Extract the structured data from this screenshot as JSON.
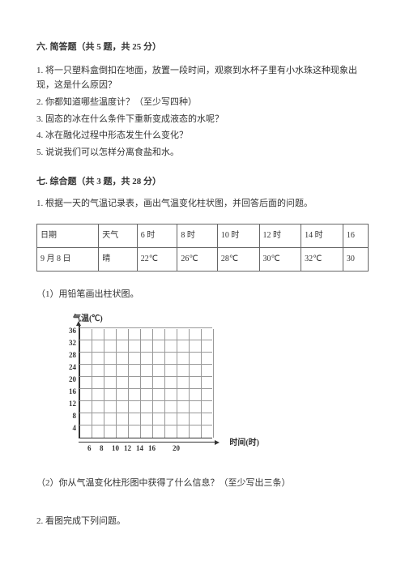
{
  "section6": {
    "title": "六. 简答题（共 5 题，共 25 分）",
    "questions": [
      "1. 将一只塑料盒倒扣在地面，放置一段时间，观察到水杯子里有小水珠这种现象出现，这是什么原因？",
      "2. 你都知道哪些温度计？（至少写四种）",
      "3. 固态的冰在什么条件下重新变成液态的水呢？",
      "4. 冰在融化过程中形态发生什么变化？",
      "5. 说说我们可以怎样分离食盐和水。"
    ]
  },
  "section7": {
    "title": "七. 综合题（共 3 题，共 28 分）",
    "intro": "1. 根据一天的气温记录表，画出气温变化柱状图，并回答后面的问题。",
    "table": {
      "headers": [
        "日期",
        "天气",
        "6 时",
        "8 时",
        "10 时",
        "12 时",
        "14 时",
        "16"
      ],
      "row": [
        "9 月 8 日",
        "晴",
        "22℃",
        "26℃",
        "28℃",
        "30℃",
        "32℃",
        "30"
      ]
    },
    "sub1": "（1）用铅笔画出柱状图。",
    "sub2": "（2）你从气温变化柱形图中获得了什么信息？（至少写出三条）",
    "q2": "2. 看图完成下列问题。"
  },
  "chart": {
    "y_label": "气温(℃)",
    "x_label": "时间(时)",
    "y_ticks": [
      4,
      8,
      12,
      16,
      20,
      24,
      28,
      32,
      36
    ],
    "x_ticks": [
      6,
      8,
      10,
      12,
      14,
      16,
      20
    ],
    "grid_rows": 9,
    "grid_cols": 11,
    "colors": {
      "axis": "#333333",
      "grid": "#999999",
      "text": "#333333"
    }
  }
}
